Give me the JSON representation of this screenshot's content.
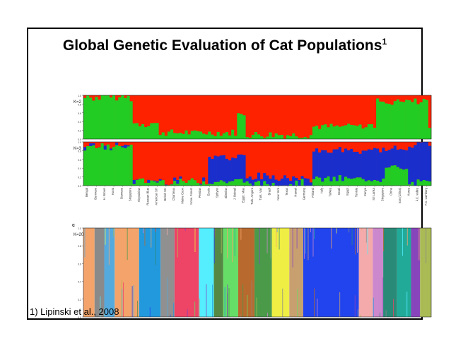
{
  "slide": {
    "title": "Global Genetic Evaluation of Cat Populations",
    "title_superscript": "1",
    "footnote": "1) Lipinski et al., 2008"
  },
  "chart_data": [
    {
      "type": "bar",
      "panel": "a",
      "label": "K=2",
      "ylim": [
        0,
        1.0
      ],
      "yticks": [
        "1.0",
        "0.8",
        "0.6",
        "0.4",
        "0.2",
        "0.0"
      ],
      "cluster_colors": [
        "#22cc22",
        "#ff2200"
      ],
      "stacked": true,
      "columns": 120,
      "cluster_fractions": [
        {
          "from": 0.0,
          "to": 0.14,
          "values": [
            0.95,
            0.05
          ]
        },
        {
          "from": 0.14,
          "to": 0.22,
          "values": [
            0.35,
            0.65
          ]
        },
        {
          "from": 0.22,
          "to": 0.44,
          "values": [
            0.15,
            0.85
          ]
        },
        {
          "from": 0.44,
          "to": 0.47,
          "values": [
            0.6,
            0.4
          ]
        },
        {
          "from": 0.47,
          "to": 0.66,
          "values": [
            0.1,
            0.9
          ]
        },
        {
          "from": 0.66,
          "to": 0.84,
          "values": [
            0.3,
            0.7
          ]
        },
        {
          "from": 0.84,
          "to": 0.99,
          "values": [
            0.85,
            0.15
          ]
        },
        {
          "from": 0.99,
          "to": 1.0,
          "values": [
            0.25,
            0.75
          ]
        }
      ]
    },
    {
      "type": "bar",
      "panel": "b",
      "label": "K=3",
      "ylim": [
        0,
        1.0
      ],
      "yticks": [
        "1.0",
        "0.8",
        "0.6",
        "0.4",
        "0.2",
        "0.0"
      ],
      "cluster_colors": [
        "#22cc22",
        "#ff2200",
        "#1a2ecc"
      ],
      "stacked": true,
      "columns": 120,
      "cluster_fractions": [
        {
          "from": 0.0,
          "to": 0.14,
          "values": [
            0.9,
            0.08,
            0.02
          ]
        },
        {
          "from": 0.14,
          "to": 0.36,
          "values": [
            0.1,
            0.88,
            0.02
          ]
        },
        {
          "from": 0.36,
          "to": 0.47,
          "values": [
            0.1,
            0.35,
            0.55
          ]
        },
        {
          "from": 0.47,
          "to": 0.66,
          "values": [
            0.05,
            0.8,
            0.15
          ]
        },
        {
          "from": 0.66,
          "to": 0.87,
          "values": [
            0.15,
            0.2,
            0.65
          ]
        },
        {
          "from": 0.87,
          "to": 0.93,
          "values": [
            0.4,
            0.15,
            0.45
          ]
        },
        {
          "from": 0.93,
          "to": 1.0,
          "values": [
            0.05,
            0.05,
            0.9
          ]
        }
      ],
      "categories": [
        "Bengal",
        "Burmese",
        "H. Brown",
        "Korat",
        "Siamese",
        "Singapura",
        "Abyssinian",
        "Russian Blue",
        "American SH",
        "British SH",
        "Chartreux",
        "Maine Coon",
        "Norw. Forest",
        "Persian",
        "Exotic",
        "Sphynx",
        "Siberian",
        "J. Bobtail",
        "Egypt. Mau",
        "Turk. Angora",
        "Turk. Van",
        "Brazil",
        "New York",
        "Texas",
        "Hawaii",
        "Germany",
        "Finland",
        "Italy",
        "Turkey",
        "Israel",
        "Egypt",
        "Tunisia",
        "Kenya",
        "Sri Lanka",
        "Singapore",
        "China",
        "Iran (China)",
        "Korea",
        "F.C. valley",
        "F.C. Lamburg"
      ]
    },
    {
      "type": "bar",
      "panel": "c",
      "panel_letter": "c",
      "label": "K=20",
      "ylim": [
        0,
        1.0
      ],
      "yticks": [
        "1.0",
        "0.8",
        "0.6",
        "0.4",
        "0.2",
        "0.0"
      ],
      "stacked": true,
      "cluster_blocks": [
        {
          "from": 0.0,
          "to": 0.032,
          "color": "#f4a46a"
        },
        {
          "from": 0.032,
          "to": 0.06,
          "color": "#8a8a8a"
        },
        {
          "from": 0.06,
          "to": 0.09,
          "color": "#55aadd"
        },
        {
          "from": 0.09,
          "to": 0.16,
          "color": "#f4a46a"
        },
        {
          "from": 0.16,
          "to": 0.222,
          "color": "#2299dd"
        },
        {
          "from": 0.222,
          "to": 0.262,
          "color": "#909090"
        },
        {
          "from": 0.262,
          "to": 0.332,
          "color": "#ee4466"
        },
        {
          "from": 0.332,
          "to": 0.375,
          "color": "#55eeff"
        },
        {
          "from": 0.375,
          "to": 0.402,
          "color": "#558844"
        },
        {
          "from": 0.402,
          "to": 0.445,
          "color": "#66dd66"
        },
        {
          "from": 0.445,
          "to": 0.492,
          "color": "#b86a2e"
        },
        {
          "from": 0.492,
          "to": 0.542,
          "color": "#4a9a4a"
        },
        {
          "from": 0.542,
          "to": 0.592,
          "color": "#eeee44"
        },
        {
          "from": 0.592,
          "to": 0.632,
          "color": "#c8a070"
        },
        {
          "from": 0.632,
          "to": 0.792,
          "color": "#2244ee"
        },
        {
          "from": 0.792,
          "to": 0.832,
          "color": "#f4aaaa"
        },
        {
          "from": 0.832,
          "to": 0.862,
          "color": "#cc88cc"
        },
        {
          "from": 0.862,
          "to": 0.902,
          "color": "#2a8a78"
        },
        {
          "from": 0.902,
          "to": 0.942,
          "color": "#22aa99"
        },
        {
          "from": 0.942,
          "to": 0.968,
          "color": "#8844bb"
        },
        {
          "from": 0.968,
          "to": 1.0,
          "color": "#aabb55"
        }
      ]
    }
  ]
}
